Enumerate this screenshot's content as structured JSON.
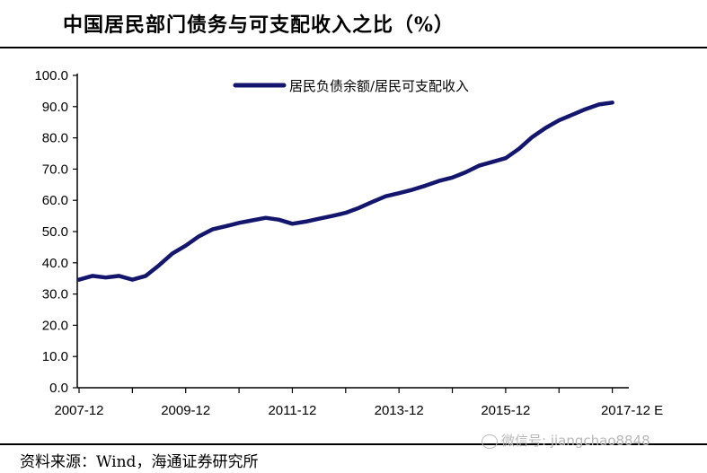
{
  "title": "中国居民部门债务与可支配收入之比（%）",
  "source": "资料来源：Wind，海通证券研究所",
  "watermark": "微信号: jiangchao8848",
  "colors": {
    "line": "#14166e",
    "axis": "#000000"
  },
  "chart_data": {
    "type": "line",
    "title": "中国居民部门债务与可支配收入之比（%）",
    "ylim": [
      0,
      100
    ],
    "yticks": [
      "0.0",
      "10.0",
      "20.0",
      "30.0",
      "40.0",
      "50.0",
      "60.0",
      "70.0",
      "80.0",
      "90.0",
      "100.0"
    ],
    "xtick_labels": [
      "2007-12",
      "2009-12",
      "2011-12",
      "2013-12",
      "2015-12",
      "2017-12 E"
    ],
    "legend": {
      "position": "top-center"
    },
    "grid": false,
    "series": [
      {
        "name": "居民负债余额/居民可支配收入",
        "x": [
          "2007-12",
          "2008-03",
          "2008-06",
          "2008-09",
          "2008-12",
          "2009-03",
          "2009-06",
          "2009-09",
          "2009-12",
          "2010-03",
          "2010-06",
          "2010-09",
          "2010-12",
          "2011-03",
          "2011-06",
          "2011-09",
          "2011-12",
          "2012-03",
          "2012-06",
          "2012-09",
          "2012-12",
          "2013-03",
          "2013-06",
          "2013-09",
          "2013-12",
          "2014-03",
          "2014-06",
          "2014-09",
          "2014-12",
          "2015-03",
          "2015-06",
          "2015-09",
          "2015-12",
          "2016-03",
          "2016-06",
          "2016-09",
          "2016-12",
          "2017-03",
          "2017-06",
          "2017-09",
          "2017-12"
        ],
        "values": [
          34.6,
          35.8,
          35.3,
          35.8,
          34.6,
          35.8,
          39.2,
          43.0,
          45.5,
          48.5,
          50.7,
          51.7,
          52.8,
          53.6,
          54.4,
          53.8,
          52.5,
          53.2,
          54.1,
          55.0,
          56.0,
          57.6,
          59.5,
          61.3,
          62.3,
          63.4,
          64.7,
          66.2,
          67.3,
          69.0,
          71.1,
          72.3,
          73.5,
          76.5,
          80.3,
          83.2,
          85.6,
          87.4,
          89.2,
          90.7,
          91.3
        ]
      }
    ]
  }
}
